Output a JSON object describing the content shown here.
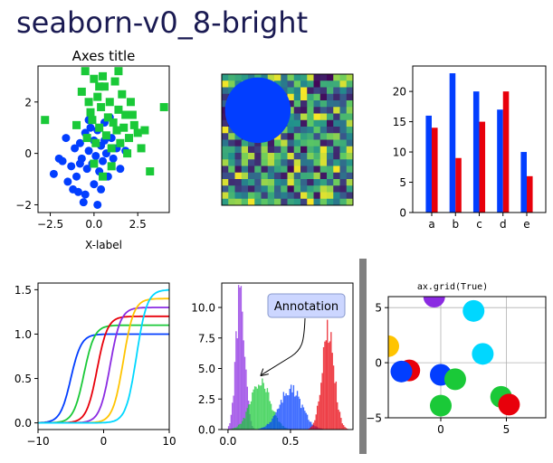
{
  "suptitle": "seaborn-v0_8-bright",
  "colors": {
    "blue": "#023eff",
    "green": "#1ac938",
    "red": "#e8000b",
    "purple": "#8b2be2",
    "yellow": "#ffc400",
    "cyan": "#00d7ff",
    "title": "#1a1a52",
    "grid": "#b0b0b0",
    "divider": "#808080"
  },
  "chart_data": [
    {
      "type": "scatter",
      "title": "Axes title",
      "xlabel": "X-label",
      "ylabel": "",
      "xlim": [
        -3.2,
        4.3
      ],
      "ylim": [
        -2.3,
        3.4
      ],
      "xticks": [
        -2.5,
        0,
        2.5
      ],
      "xticklabels": [
        "−2.5",
        "0.0",
        "2.5"
      ],
      "yticks": [
        -2,
        0,
        2
      ],
      "yticklabels": [
        "−2",
        "0",
        "2"
      ],
      "series": [
        {
          "marker": "circle",
          "color": "blue",
          "points": [
            [
              -2.3,
              -0.8
            ],
            [
              -1.8,
              -0.3
            ],
            [
              -1.5,
              -1.1
            ],
            [
              -1.3,
              -0.5
            ],
            [
              -1.1,
              0.2
            ],
            [
              -1.0,
              -0.9
            ],
            [
              -0.9,
              -1.5
            ],
            [
              -0.8,
              0.4
            ],
            [
              -0.7,
              -0.2
            ],
            [
              -0.6,
              -1.9
            ],
            [
              -0.5,
              0.8
            ],
            [
              -0.4,
              -0.6
            ],
            [
              -0.3,
              0.1
            ],
            [
              -0.2,
              1.0
            ],
            [
              -0.1,
              -0.4
            ],
            [
              0.0,
              0.5
            ],
            [
              0.0,
              -1.2
            ],
            [
              0.1,
              -0.1
            ],
            [
              0.2,
              0.9
            ],
            [
              0.3,
              -0.7
            ],
            [
              0.4,
              0.3
            ],
            [
              0.5,
              -0.3
            ],
            [
              0.6,
              1.2
            ],
            [
              0.7,
              0.0
            ],
            [
              0.8,
              -0.9
            ],
            [
              1.0,
              0.6
            ],
            [
              1.1,
              -0.2
            ],
            [
              1.3,
              0.2
            ],
            [
              1.5,
              -0.6
            ],
            [
              -1.6,
              0.6
            ],
            [
              -1.2,
              -1.4
            ],
            [
              -0.5,
              -1.6
            ],
            [
              0.2,
              -2.0
            ],
            [
              -2.0,
              -0.2
            ],
            [
              0.9,
              1.4
            ],
            [
              1.8,
              0.1
            ],
            [
              -0.3,
              1.3
            ],
            [
              0.4,
              -1.4
            ],
            [
              -0.8,
              -0.4
            ],
            [
              0.6,
              0.5
            ]
          ]
        },
        {
          "marker": "square",
          "color": "green",
          "points": [
            [
              -2.8,
              1.3
            ],
            [
              -1.0,
              1.1
            ],
            [
              -0.7,
              2.4
            ],
            [
              -0.5,
              3.2
            ],
            [
              -0.3,
              2.0
            ],
            [
              -0.2,
              1.6
            ],
            [
              0.0,
              2.9
            ],
            [
              0.1,
              0.4
            ],
            [
              0.2,
              2.2
            ],
            [
              0.3,
              1.0
            ],
            [
              0.4,
              1.8
            ],
            [
              0.5,
              3.0
            ],
            [
              0.6,
              2.6
            ],
            [
              0.7,
              0.7
            ],
            [
              0.8,
              1.4
            ],
            [
              0.9,
              2.0
            ],
            [
              1.0,
              0.2
            ],
            [
              1.1,
              1.2
            ],
            [
              1.2,
              2.8
            ],
            [
              1.3,
              0.9
            ],
            [
              1.4,
              1.7
            ],
            [
              1.5,
              0.4
            ],
            [
              1.6,
              2.3
            ],
            [
              1.7,
              1.0
            ],
            [
              1.8,
              1.5
            ],
            [
              2.0,
              0.6
            ],
            [
              2.1,
              2.0
            ],
            [
              2.3,
              1.1
            ],
            [
              2.5,
              0.8
            ],
            [
              2.7,
              0.2
            ],
            [
              2.9,
              0.9
            ],
            [
              3.2,
              -0.7
            ],
            [
              4.0,
              1.8
            ],
            [
              0.0,
              -0.4
            ],
            [
              0.5,
              -0.9
            ],
            [
              -0.4,
              0.6
            ],
            [
              1.0,
              -0.5
            ],
            [
              1.9,
              0.0
            ],
            [
              0.3,
              2.6
            ],
            [
              1.4,
              3.2
            ],
            [
              -0.1,
              1.3
            ],
            [
              2.2,
              1.5
            ]
          ]
        }
      ]
    },
    {
      "type": "heatmap",
      "rows": 20,
      "cols": 20,
      "colormap": "viridis",
      "overlay": "circle",
      "values": [
        0.55,
        0.64,
        0.6,
        0.54,
        0.42,
        0.65,
        0.44,
        0.89,
        0.96,
        0.38,
        0.79,
        0.53,
        0.57,
        0.93,
        0.07,
        0.09,
        0.02,
        0.83,
        0.78,
        0.87,
        0.98,
        0.8,
        0.46,
        0.78,
        0.12,
        0.64,
        0.14,
        0.94,
        0.52,
        0.41,
        0.26,
        0.77,
        0.46,
        0.57,
        0.02,
        0.62,
        0.61,
        0.62,
        0.94,
        0.68,
        0.36,
        0.44,
        0.7,
        0.06,
        0.67,
        0.67,
        0.21,
        0.13,
        0.32,
        0.36,
        0.57,
        0.44,
        0.99,
        0.1,
        0.21,
        0.16,
        0.65,
        0.25,
        0.47,
        0.24,
        0.16,
        0.11,
        0.66,
        0.14,
        0.2,
        0.37,
        0.82,
        0.1,
        0.84,
        0.1,
        0.98,
        0.47,
        0.98,
        0.6,
        0.74,
        0.04,
        0.28,
        0.12,
        0.29,
        0.12,
        0.32,
        0.41,
        0.06,
        0.68,
        0.62,
        0.7,
        0.42,
        0.11,
        0.15,
        0.92,
        0.09,
        0.7,
        0.13,
        0.68,
        0.4,
        0.63,
        0.38,
        0.36,
        0.27,
        0.75,
        0.04,
        0.81,
        0.28,
        0.72,
        0.03,
        0.57,
        0.54,
        0.39,
        0.85,
        0.47,
        0.82,
        0.1,
        0.06,
        0.71,
        0.11,
        0.28,
        0.19,
        0.93,
        0.37,
        0.82,
        0.07,
        0.87,
        0.47,
        0.89,
        0.38,
        0.69,
        0.79,
        0.46,
        0.49,
        0.79,
        0.54,
        0.34,
        0.89,
        0.69,
        0.99,
        0.93,
        0.61,
        0.16,
        0.67,
        0.67,
        0.15,
        0.03,
        0.43,
        0.61,
        0.79,
        0.92,
        0.12,
        0.92,
        0.27,
        0.23,
        0.5,
        0.51,
        0.07,
        0.74,
        0.55,
        0.54,
        0.05,
        0.42,
        0.39,
        0.89,
        0.98,
        0.31,
        0.48,
        0.46,
        0.79,
        0.46,
        0.94,
        0.6,
        0.71,
        0.79,
        0.45,
        0.24,
        0.37,
        0.44,
        0.74,
        0.38,
        0.17,
        0.14,
        0.38,
        0.62,
        0.19,
        0.83,
        0.52,
        0.05,
        0.8,
        0.74,
        0.9,
        0.26,
        0.97,
        0.22,
        0.07,
        0.75,
        0.57,
        0.63,
        0.25,
        0.66,
        0.78,
        0.82,
        0.27,
        0.46,
        0.39,
        0.17,
        0.08,
        0.6,
        0.37,
        0.12,
        0.72,
        0.08,
        0.73,
        0.9,
        0.33,
        0.54,
        0.67,
        0.73,
        0.72,
        0.09,
        0.15,
        0.66,
        0.62,
        0.35,
        0.61,
        0.61,
        0.4,
        0.89,
        0.13,
        0.19,
        0.84,
        0.12,
        0.2,
        0.68,
        0.1,
        0.71,
        0.03,
        0.65,
        0.55,
        0.98,
        0.59,
        0.13,
        0.56,
        0.94,
        0.6,
        0.5,
        0.16,
        0.79,
        0.88,
        0.12,
        0.78,
        0.9,
        0.73,
        0.58,
        0.94,
        0.24,
        0.36,
        0.8,
        0.66,
        0.93,
        0.4,
        0.12,
        0.75,
        0.84,
        0.86,
        0.56,
        0.28,
        0.82,
        0.22,
        0.14,
        0.76,
        0.89,
        0.64,
        0.35,
        0.17,
        0.92,
        0.39,
        0.4,
        0.74,
        0.94,
        0.3,
        0.54,
        0.36,
        0.52,
        0.15,
        0.75,
        0.06,
        0.41,
        0.11,
        0.65,
        0.1,
        0.37,
        0.57,
        0.63,
        0.02,
        0.97,
        0.15,
        0.34,
        0.07,
        0.67,
        0.64,
        0.99,
        0.31,
        0.68,
        0.24,
        0.24,
        0.98,
        0.87,
        0.34,
        0.35,
        0.7,
        0.42,
        0.21,
        0.08,
        0.88,
        0.34,
        0.61,
        0.62,
        0.85,
        0.07,
        0.62,
        0.15,
        0.37,
        0.26,
        0.94,
        0.14,
        0.15,
        0.44,
        0.56,
        0.26,
        0.84,
        0.82,
        0.49,
        0.42,
        0.95,
        0.62,
        0.33,
        0.11,
        0.44,
        0.57,
        0.32,
        0.77,
        0.18,
        0.87,
        0.27,
        0.61,
        0.18,
        0.24,
        0.1,
        0.32,
        0.45,
        0.73,
        0.31,
        0.67,
        0.02,
        0.68,
        0.39,
        0.57,
        0.65,
        0.9,
        0.83,
        0.14,
        0.1,
        0.56,
        0.92,
        0.65,
        0.47,
        0.41,
        0.73,
        0.63,
        0.2,
        0.59,
        0.34,
        0.42,
        0.31,
        0.15,
        0.96,
        0.71,
        0.07,
        0.95,
        0.93,
        0.47,
        0.29,
        0.16,
        0.55,
        0.82,
        0.84,
        0.7,
        0.98,
        0.58,
        0.73,
        0.63,
        0.79,
        0.18,
        0.59,
        0.54,
        0.2,
        0.99,
        0.44,
        0.77,
        0.54,
        0.4,
        0.66,
        0.84
      ]
    },
    {
      "type": "bar",
      "categories": [
        "a",
        "b",
        "c",
        "d",
        "e"
      ],
      "ylim": [
        0,
        24.2
      ],
      "yticks": [
        0,
        5,
        10,
        15,
        20
      ],
      "series": [
        {
          "color": "blue",
          "values": [
            16,
            23,
            20,
            17,
            10
          ]
        },
        {
          "color": "red",
          "values": [
            14,
            9,
            15,
            20,
            6
          ]
        }
      ]
    },
    {
      "type": "line",
      "xlim": [
        -10,
        10
      ],
      "ylim": [
        -0.075,
        1.575
      ],
      "xticks": [
        -10,
        0,
        10
      ],
      "xticklabels": [
        "−10",
        "0",
        "10"
      ],
      "yticks": [
        0,
        0.5,
        1.0,
        1.5
      ],
      "yticklabels": [
        "0.0",
        "0.5",
        "1.0",
        "1.5"
      ],
      "series": [
        {
          "color": "blue",
          "amplitude": 1.0,
          "center": -5
        },
        {
          "color": "green",
          "amplitude": 1.1,
          "center": -3
        },
        {
          "color": "red",
          "amplitude": 1.2,
          "center": -1
        },
        {
          "color": "purple",
          "amplitude": 1.3,
          "center": 1
        },
        {
          "color": "yellow",
          "amplitude": 1.4,
          "center": 3
        },
        {
          "color": "cyan",
          "amplitude": 1.5,
          "center": 5
        }
      ]
    },
    {
      "type": "histogram",
      "xlim": [
        -0.05,
        1.0
      ],
      "ylim": [
        0,
        12
      ],
      "xticks": [
        0,
        0.5
      ],
      "xticklabels": [
        "0.0",
        "0.5"
      ],
      "yticks": [
        0,
        2.5,
        5,
        7.5,
        10
      ],
      "yticklabels": [
        "0.0",
        "2.5",
        "5.0",
        "7.5",
        "10.0"
      ],
      "annotation": {
        "text": "Annotation",
        "xy": [
          0.26,
          4.4
        ],
        "xytext": [
          0.62,
          10.6
        ]
      },
      "series": [
        {
          "color": "purple",
          "mean": 0.1,
          "sd": 0.035,
          "peak": 11.3
        },
        {
          "color": "green",
          "mean": 0.26,
          "sd": 0.08,
          "peak": 3.7
        },
        {
          "color": "blue",
          "mean": 0.5,
          "sd": 0.09,
          "peak": 3.3
        },
        {
          "color": "red",
          "mean": 0.8,
          "sd": 0.05,
          "peak": 8.0
        }
      ]
    },
    {
      "type": "scatter",
      "title": "ax.grid(True)",
      "grid": true,
      "xlim": [
        -4,
        8
      ],
      "ylim": [
        -5,
        6
      ],
      "xticks": [
        0,
        5
      ],
      "xticklabels": [
        "0",
        "5"
      ],
      "yticks": [
        -5,
        0,
        5
      ],
      "yticklabels": [
        "−5",
        "0",
        "5"
      ],
      "points": [
        {
          "x": -4.0,
          "y": 1.5,
          "color": "yellow"
        },
        {
          "x": -0.5,
          "y": 6.0,
          "color": "purple"
        },
        {
          "x": 2.5,
          "y": 4.7,
          "color": "cyan"
        },
        {
          "x": 3.2,
          "y": 0.8,
          "color": "cyan"
        },
        {
          "x": -2.4,
          "y": -0.7,
          "color": "red"
        },
        {
          "x": -3.0,
          "y": -0.8,
          "color": "blue"
        },
        {
          "x": 0.0,
          "y": -1.1,
          "color": "blue"
        },
        {
          "x": 1.1,
          "y": -1.5,
          "color": "green"
        },
        {
          "x": 0.0,
          "y": -3.9,
          "color": "green"
        },
        {
          "x": 4.6,
          "y": -3.1,
          "color": "green"
        },
        {
          "x": 5.2,
          "y": -3.8,
          "color": "red"
        }
      ]
    }
  ]
}
